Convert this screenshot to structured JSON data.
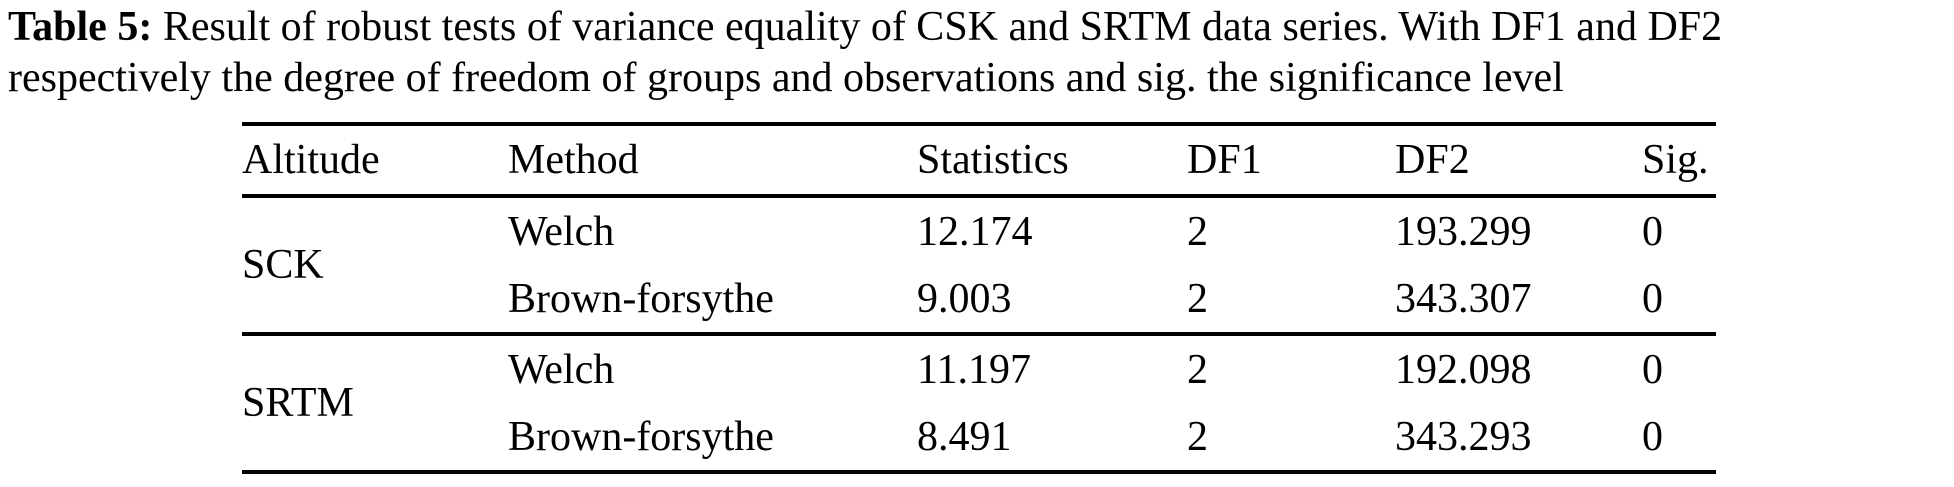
{
  "caption": {
    "label": "Table 5:",
    "line1": "Result of robust tests of variance equality of CSK and SRTM data series. With DF1 and DF2",
    "line2": "respectively the degree of freedom of groups and observations and sig. the significance level"
  },
  "table": {
    "columns": [
      "Altitude",
      "Method",
      "Statistics",
      "DF1",
      "DF2",
      "Sig."
    ],
    "groups": [
      {
        "altitude": "SCK",
        "rows": [
          {
            "method": "Welch",
            "statistics": "12.174",
            "df1": "2",
            "df2": "193.299",
            "sig": "0"
          },
          {
            "method": "Brown-forsythe",
            "statistics": "9.003",
            "df1": "2",
            "df2": "343.307",
            "sig": "0"
          }
        ]
      },
      {
        "altitude": "SRTM",
        "rows": [
          {
            "method": "Welch",
            "statistics": "11.197",
            "df1": "2",
            "df2": "192.098",
            "sig": "0"
          },
          {
            "method": "Brown-forsythe",
            "statistics": "8.491",
            "df1": "2",
            "df2": "343.293",
            "sig": "0"
          }
        ]
      }
    ]
  },
  "colors": {
    "text": "#000000",
    "background": "#ffffff",
    "rule": "#000000"
  }
}
